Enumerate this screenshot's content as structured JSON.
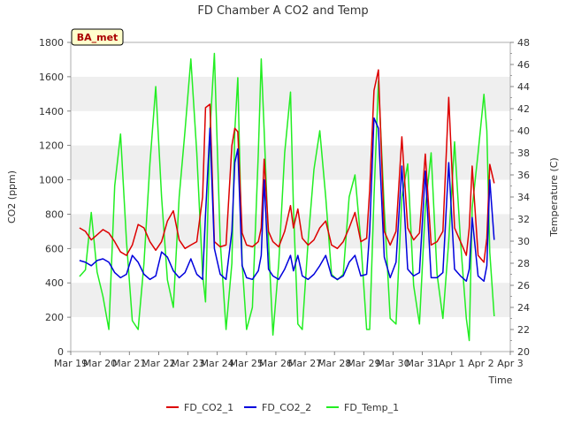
{
  "chart_data": {
    "type": "line",
    "title": "FD Chamber A CO2 and Temp",
    "station_badge": "BA_met",
    "xlabel": "Time",
    "ylabel_left": "CO2 (ppm)",
    "ylabel_right": "Temperature (C)",
    "x_ticks": [
      "Mar 19",
      "Mar 20",
      "Mar 21",
      "Mar 22",
      "Mar 23",
      "Mar 24",
      "Mar 25",
      "Mar 26",
      "Mar 27",
      "Mar 28",
      "Mar 29",
      "Mar 30",
      "Mar 31",
      "Apr 1",
      "Apr 2",
      "Apr 3"
    ],
    "xlim_days": [
      0,
      15
    ],
    "ylim_left": [
      0,
      1800
    ],
    "yticks_left": [
      0,
      200,
      400,
      600,
      800,
      1000,
      1200,
      1400,
      1600,
      1800
    ],
    "ylim_right": [
      20,
      48
    ],
    "yticks_right": [
      20,
      22,
      24,
      26,
      28,
      30,
      32,
      34,
      36,
      38,
      40,
      42,
      44,
      46,
      48
    ],
    "grid": "horizontal bands",
    "legend_position": "bottom",
    "series": [
      {
        "name": "FD_CO2_1",
        "axis": "left",
        "color": "#dd0000",
        "x": [
          0.3,
          0.5,
          0.7,
          0.9,
          1.1,
          1.3,
          1.5,
          1.7,
          1.9,
          2.1,
          2.3,
          2.5,
          2.7,
          2.9,
          3.1,
          3.3,
          3.5,
          3.7,
          3.9,
          4.1,
          4.3,
          4.5,
          4.6,
          4.75,
          4.9,
          5.1,
          5.3,
          5.5,
          5.6,
          5.7,
          5.85,
          6.0,
          6.2,
          6.4,
          6.5,
          6.6,
          6.75,
          6.9,
          7.1,
          7.3,
          7.5,
          7.6,
          7.75,
          7.9,
          8.1,
          8.3,
          8.5,
          8.7,
          8.9,
          9.1,
          9.3,
          9.5,
          9.7,
          9.9,
          10.1,
          10.2,
          10.35,
          10.5,
          10.7,
          10.9,
          11.1,
          11.3,
          11.5,
          11.7,
          11.9,
          12.1,
          12.3,
          12.5,
          12.7,
          12.9,
          13.1,
          13.3,
          13.5,
          13.6,
          13.7,
          13.9,
          14.1,
          14.2,
          14.3,
          14.45
        ],
        "y": [
          720,
          700,
          650,
          680,
          710,
          690,
          640,
          580,
          560,
          620,
          740,
          720,
          640,
          590,
          640,
          760,
          820,
          650,
          600,
          620,
          640,
          900,
          1420,
          1440,
          640,
          610,
          620,
          1200,
          1300,
          1280,
          690,
          620,
          610,
          640,
          720,
          1120,
          700,
          640,
          610,
          700,
          850,
          720,
          830,
          660,
          620,
          650,
          720,
          760,
          620,
          600,
          640,
          720,
          810,
          640,
          660,
          940,
          1520,
          1640,
          700,
          620,
          700,
          1250,
          720,
          650,
          690,
          1150,
          620,
          640,
          700,
          1480,
          720,
          640,
          560,
          720,
          1080,
          560,
          520,
          660,
          1090,
          980
        ]
      },
      {
        "name": "FD_CO2_2",
        "axis": "left",
        "color": "#0000dd",
        "x": [
          0.3,
          0.5,
          0.7,
          0.9,
          1.1,
          1.3,
          1.5,
          1.7,
          1.9,
          2.1,
          2.3,
          2.5,
          2.7,
          2.9,
          3.1,
          3.3,
          3.5,
          3.7,
          3.9,
          4.1,
          4.3,
          4.5,
          4.6,
          4.75,
          4.9,
          5.1,
          5.3,
          5.5,
          5.6,
          5.7,
          5.85,
          6.0,
          6.2,
          6.4,
          6.5,
          6.6,
          6.75,
          6.9,
          7.1,
          7.3,
          7.5,
          7.6,
          7.75,
          7.9,
          8.1,
          8.3,
          8.5,
          8.7,
          8.9,
          9.1,
          9.3,
          9.5,
          9.7,
          9.9,
          10.1,
          10.2,
          10.35,
          10.5,
          10.7,
          10.9,
          11.1,
          11.3,
          11.5,
          11.7,
          11.9,
          12.1,
          12.3,
          12.5,
          12.7,
          12.9,
          13.1,
          13.3,
          13.5,
          13.6,
          13.7,
          13.9,
          14.1,
          14.2,
          14.3,
          14.45
        ],
        "y": [
          530,
          520,
          500,
          530,
          540,
          520,
          460,
          430,
          450,
          560,
          520,
          450,
          420,
          440,
          580,
          550,
          470,
          430,
          460,
          540,
          450,
          420,
          800,
          1300,
          600,
          450,
          420,
          700,
          1100,
          1180,
          500,
          430,
          420,
          470,
          560,
          1000,
          480,
          440,
          420,
          480,
          560,
          470,
          560,
          440,
          420,
          450,
          500,
          560,
          440,
          420,
          440,
          520,
          560,
          440,
          450,
          700,
          1360,
          1300,
          550,
          430,
          520,
          1080,
          480,
          440,
          460,
          1050,
          430,
          430,
          460,
          1100,
          480,
          440,
          410,
          480,
          780,
          440,
          410,
          500,
          1000,
          650
        ]
      },
      {
        "name": "FD_Temp_1",
        "axis": "right",
        "color": "#22ee22",
        "x": [
          0.3,
          0.5,
          0.7,
          0.9,
          1.1,
          1.3,
          1.5,
          1.7,
          1.9,
          2.1,
          2.3,
          2.5,
          2.7,
          2.9,
          3.1,
          3.3,
          3.5,
          3.7,
          3.9,
          4.1,
          4.3,
          4.5,
          4.6,
          4.75,
          4.9,
          5.1,
          5.3,
          5.5,
          5.6,
          5.7,
          5.85,
          6.0,
          6.2,
          6.4,
          6.5,
          6.6,
          6.75,
          6.9,
          7.1,
          7.3,
          7.5,
          7.6,
          7.75,
          7.9,
          8.1,
          8.3,
          8.5,
          8.7,
          8.9,
          9.1,
          9.3,
          9.5,
          9.7,
          9.9,
          10.1,
          10.2,
          10.35,
          10.5,
          10.7,
          10.9,
          11.1,
          11.3,
          11.5,
          11.7,
          11.9,
          12.1,
          12.3,
          12.5,
          12.7,
          12.9,
          13.1,
          13.3,
          13.5,
          13.6,
          13.7,
          13.9,
          14.1,
          14.2,
          14.3,
          14.45
        ],
        "y": [
          26.8,
          27.4,
          32.6,
          27.2,
          25.0,
          22.0,
          35.0,
          39.7,
          30.0,
          22.8,
          22.0,
          28.0,
          37.0,
          44.0,
          34.0,
          26.5,
          24.0,
          34.0,
          40.0,
          46.5,
          38.0,
          27.0,
          24.5,
          40.0,
          47.0,
          30.0,
          22.0,
          28.0,
          40.0,
          44.8,
          28.0,
          22.0,
          24.0,
          38.0,
          46.5,
          40.0,
          30.0,
          21.5,
          28.0,
          38.0,
          43.5,
          33.0,
          22.5,
          22.0,
          30.0,
          36.5,
          40.0,
          34.0,
          27.0,
          26.5,
          27.0,
          34.0,
          36.0,
          30.0,
          22.0,
          22.0,
          34.0,
          44.5,
          33.0,
          23.0,
          22.5,
          34.0,
          37.0,
          26.0,
          22.5,
          33.0,
          38.0,
          27.0,
          23.0,
          30.0,
          39.0,
          30.0,
          23.0,
          21.0,
          33.0,
          38.0,
          43.3,
          40.0,
          29.0,
          23.2
        ]
      }
    ]
  }
}
